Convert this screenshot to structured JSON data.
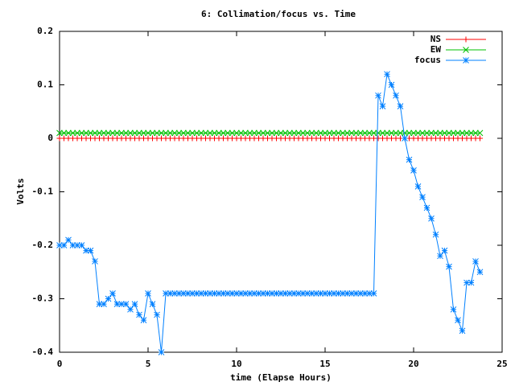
{
  "chart_data": {
    "type": "line",
    "title": "6: Collimation/focus vs. Time",
    "x_label": "time (Elapse Hours)",
    "y_label": "Volts",
    "x": [
      0,
      0.25,
      0.5,
      0.75,
      1,
      1.25,
      1.5,
      1.75,
      2,
      2.25,
      2.5,
      2.75,
      3,
      3.25,
      3.5,
      3.75,
      4,
      4.25,
      4.5,
      4.75,
      5,
      5.25,
      5.5,
      5.75,
      6,
      6.25,
      6.5,
      6.75,
      7,
      7.25,
      7.5,
      7.75,
      8,
      8.25,
      8.5,
      8.75,
      9,
      9.25,
      9.5,
      9.75,
      10,
      10.25,
      10.5,
      10.75,
      11,
      11.25,
      11.5,
      11.75,
      12,
      12.25,
      12.5,
      12.75,
      13,
      13.25,
      13.5,
      13.75,
      14,
      14.25,
      14.5,
      14.75,
      15,
      15.25,
      15.5,
      15.75,
      16,
      16.25,
      16.5,
      16.75,
      17,
      17.25,
      17.5,
      17.75,
      18,
      18.25,
      18.5,
      18.75,
      19,
      19.25,
      19.5,
      19.75,
      20,
      20.25,
      20.5,
      20.75,
      21,
      21.25,
      21.5,
      21.75,
      22,
      22.25,
      22.5,
      22.75,
      23,
      23.25,
      23.5,
      23.75
    ],
    "series": [
      {
        "name": "NS",
        "color": "#ff0000",
        "marker": "plus",
        "values": [
          0,
          0,
          0,
          0,
          0,
          0,
          0,
          0,
          0,
          0,
          0,
          0,
          0,
          0,
          0,
          0,
          0,
          0,
          0,
          0,
          0,
          0,
          0,
          0,
          0,
          0,
          0,
          0,
          0,
          0,
          0,
          0,
          0,
          0,
          0,
          0,
          0,
          0,
          0,
          0,
          0,
          0,
          0,
          0,
          0,
          0,
          0,
          0,
          0,
          0,
          0,
          0,
          0,
          0,
          0,
          0,
          0,
          0,
          0,
          0,
          0,
          0,
          0,
          0,
          0,
          0,
          0,
          0,
          0,
          0,
          0,
          0,
          0,
          0,
          0,
          0,
          0,
          0,
          0,
          0,
          0,
          0,
          0,
          0,
          0,
          0,
          0,
          0,
          0,
          0,
          0,
          0,
          0,
          0,
          0,
          0
        ]
      },
      {
        "name": "EW",
        "color": "#00c000",
        "marker": "cross",
        "values": [
          0.01,
          0.01,
          0.01,
          0.01,
          0.01,
          0.01,
          0.01,
          0.01,
          0.01,
          0.01,
          0.01,
          0.01,
          0.01,
          0.01,
          0.01,
          0.01,
          0.01,
          0.01,
          0.01,
          0.01,
          0.01,
          0.01,
          0.01,
          0.01,
          0.01,
          0.01,
          0.01,
          0.01,
          0.01,
          0.01,
          0.01,
          0.01,
          0.01,
          0.01,
          0.01,
          0.01,
          0.01,
          0.01,
          0.01,
          0.01,
          0.01,
          0.01,
          0.01,
          0.01,
          0.01,
          0.01,
          0.01,
          0.01,
          0.01,
          0.01,
          0.01,
          0.01,
          0.01,
          0.01,
          0.01,
          0.01,
          0.01,
          0.01,
          0.01,
          0.01,
          0.01,
          0.01,
          0.01,
          0.01,
          0.01,
          0.01,
          0.01,
          0.01,
          0.01,
          0.01,
          0.01,
          0.01,
          0.01,
          0.01,
          0.01,
          0.01,
          0.01,
          0.01,
          0.01,
          0.01,
          0.01,
          0.01,
          0.01,
          0.01,
          0.01,
          0.01,
          0.01,
          0.01,
          0.01,
          0.01,
          0.01,
          0.01,
          0.01,
          0.01,
          0.01,
          0.01
        ]
      },
      {
        "name": "focus",
        "color": "#0080ff",
        "marker": "star",
        "values": [
          -0.2,
          -0.2,
          -0.19,
          -0.2,
          -0.2,
          -0.2,
          -0.21,
          -0.21,
          -0.23,
          -0.31,
          -0.31,
          -0.3,
          -0.29,
          -0.31,
          -0.31,
          -0.31,
          -0.32,
          -0.31,
          -0.33,
          -0.34,
          -0.29,
          -0.31,
          -0.33,
          -0.4,
          -0.29,
          -0.29,
          -0.29,
          -0.29,
          -0.29,
          -0.29,
          -0.29,
          -0.29,
          -0.29,
          -0.29,
          -0.29,
          -0.29,
          -0.29,
          -0.29,
          -0.29,
          -0.29,
          -0.29,
          -0.29,
          -0.29,
          -0.29,
          -0.29,
          -0.29,
          -0.29,
          -0.29,
          -0.29,
          -0.29,
          -0.29,
          -0.29,
          -0.29,
          -0.29,
          -0.29,
          -0.29,
          -0.29,
          -0.29,
          -0.29,
          -0.29,
          -0.29,
          -0.29,
          -0.29,
          -0.29,
          -0.29,
          -0.29,
          -0.29,
          -0.29,
          -0.29,
          -0.29,
          -0.29,
          -0.29,
          0.08,
          0.06,
          0.12,
          0.1,
          0.08,
          0.06,
          0,
          -0.04,
          -0.06,
          -0.09,
          -0.11,
          -0.13,
          -0.15,
          -0.18,
          -0.22,
          -0.21,
          -0.24,
          -0.32,
          -0.34,
          -0.36,
          -0.27,
          -0.27,
          -0.23,
          -0.25
        ]
      }
    ],
    "xlim": [
      0,
      25
    ],
    "xticks": [
      0,
      5,
      10,
      15,
      20,
      25
    ],
    "ylim": [
      -0.4,
      0.2
    ],
    "yticks": [
      -0.4,
      -0.3,
      -0.2,
      -0.1,
      0,
      0.1,
      0.2
    ],
    "legend": "top-right",
    "grid": false
  }
}
